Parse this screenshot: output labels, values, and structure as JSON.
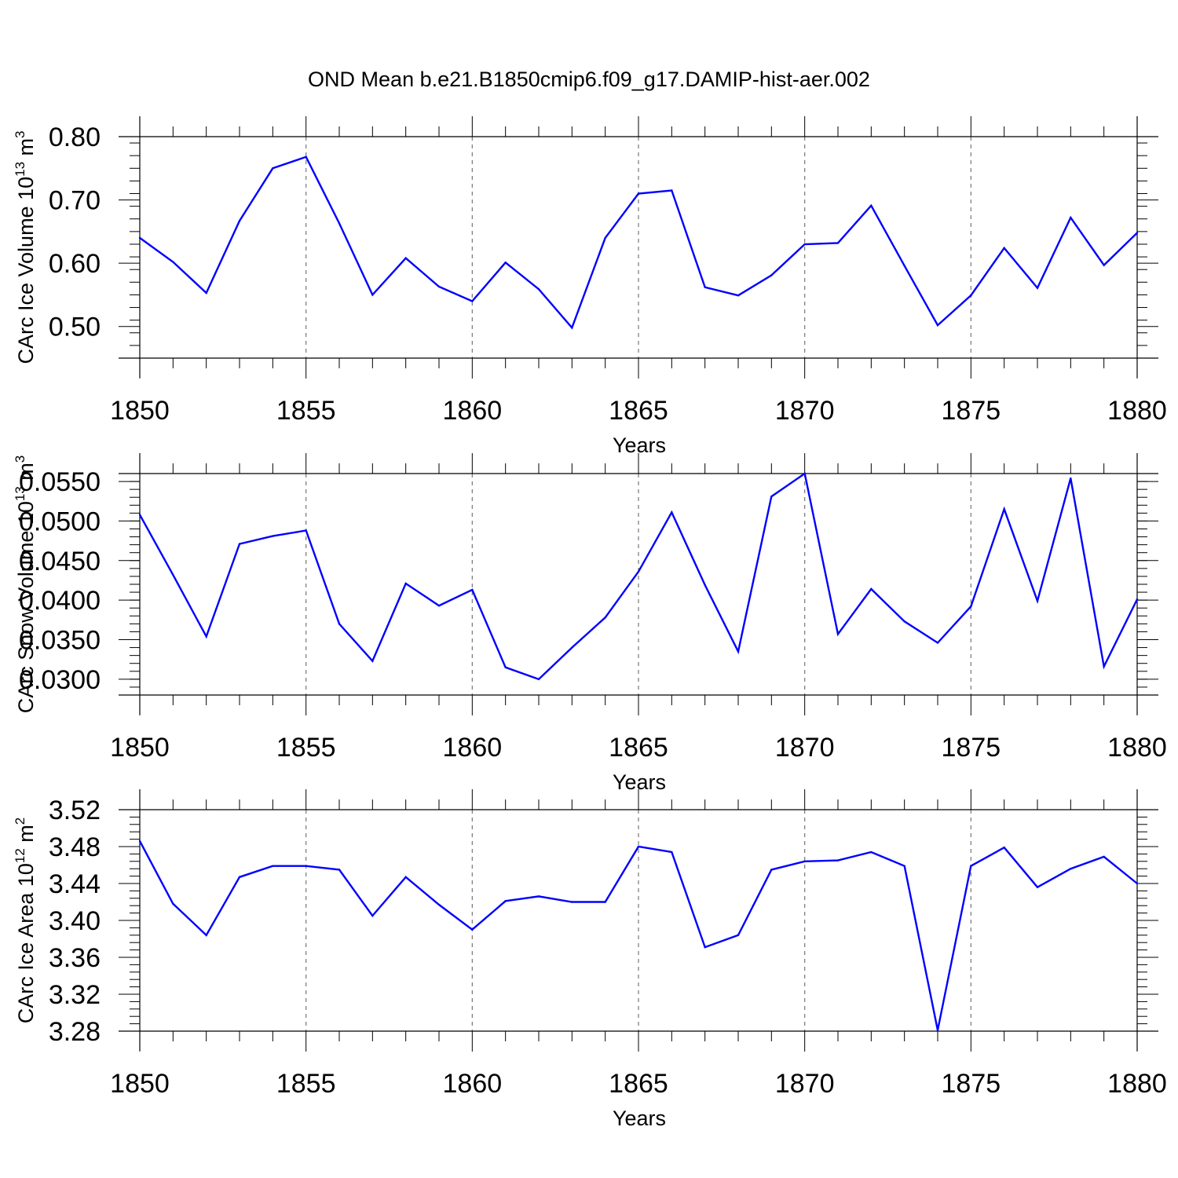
{
  "title": "OND Mean b.e21.B1850cmip6.f09_g17.DAMIP-hist-aer.002",
  "line_color": "#0000ff",
  "chart_data": [
    {
      "type": "line",
      "title": "OND Mean b.e21.B1850cmip6.f09_g17.DAMIP-hist-aer.002",
      "xlabel": "Years",
      "ylabel": "CArc Ice Volume 10",
      "ylabel_exp": "13",
      "ylabel_unit": " m",
      "ylabel_unit_exp": "3",
      "xlim": [
        1850,
        1880
      ],
      "ylim": [
        0.45,
        0.8
      ],
      "yticks": [
        0.5,
        0.6,
        0.7,
        0.8
      ],
      "ytick_labels": [
        "0.50",
        "0.60",
        "0.70",
        "0.80"
      ],
      "xticks": [
        1850,
        1855,
        1860,
        1865,
        1870,
        1875,
        1880
      ],
      "xtick_labels": [
        "1850",
        "1855",
        "1860",
        "1865",
        "1870",
        "1875",
        "1880"
      ],
      "grid": "vertical dashed at major x ticks",
      "x": [
        1850,
        1851,
        1852,
        1853,
        1854,
        1855,
        1856,
        1857,
        1858,
        1859,
        1860,
        1861,
        1862,
        1863,
        1864,
        1865,
        1866,
        1867,
        1868,
        1869,
        1870,
        1871,
        1872,
        1873,
        1874,
        1875,
        1876,
        1877,
        1878,
        1879,
        1880
      ],
      "y": [
        0.64,
        0.602,
        0.553,
        0.667,
        0.75,
        0.768,
        0.663,
        0.55,
        0.608,
        0.563,
        0.54,
        0.601,
        0.559,
        0.498,
        0.64,
        0.71,
        0.715,
        0.562,
        0.549,
        0.581,
        0.63,
        0.632,
        0.691,
        0.596,
        0.502,
        0.549,
        0.624,
        0.561,
        0.672,
        0.597,
        0.648
      ]
    },
    {
      "type": "line",
      "xlabel": "Years",
      "ylabel": "CArc Snow Volume 10",
      "ylabel_exp": "13",
      "ylabel_unit": " m",
      "ylabel_unit_exp": "3",
      "xlim": [
        1850,
        1880
      ],
      "ylim": [
        0.028,
        0.056
      ],
      "yticks": [
        0.03,
        0.035,
        0.04,
        0.045,
        0.05,
        0.055
      ],
      "ytick_labels": [
        "0.0300",
        "0.0350",
        "0.0400",
        "0.0450",
        "0.0500",
        "0.0550"
      ],
      "xticks": [
        1850,
        1855,
        1860,
        1865,
        1870,
        1875,
        1880
      ],
      "xtick_labels": [
        "1850",
        "1855",
        "1860",
        "1865",
        "1870",
        "1875",
        "1880"
      ],
      "grid": "vertical dashed at major x ticks",
      "x": [
        1850,
        1851,
        1852,
        1853,
        1854,
        1855,
        1856,
        1857,
        1858,
        1859,
        1860,
        1861,
        1862,
        1863,
        1864,
        1865,
        1866,
        1867,
        1868,
        1869,
        1870,
        1871,
        1872,
        1873,
        1874,
        1875,
        1876,
        1877,
        1878,
        1879,
        1880
      ],
      "y": [
        0.0508,
        0.0432,
        0.0354,
        0.0471,
        0.0481,
        0.0488,
        0.037,
        0.0323,
        0.0421,
        0.0393,
        0.0413,
        0.0315,
        0.03,
        0.034,
        0.0378,
        0.0436,
        0.0511,
        0.0419,
        0.0335,
        0.0531,
        0.056,
        0.0357,
        0.0414,
        0.0373,
        0.0346,
        0.0392,
        0.0515,
        0.0399,
        0.0554,
        0.0316,
        0.0401
      ]
    },
    {
      "type": "line",
      "xlabel": "Years",
      "ylabel": "CArc Ice Area 10",
      "ylabel_exp": "12",
      "ylabel_unit": " m",
      "ylabel_unit_exp": "2",
      "xlim": [
        1850,
        1880
      ],
      "ylim": [
        3.28,
        3.52
      ],
      "yticks": [
        3.28,
        3.32,
        3.36,
        3.4,
        3.44,
        3.48,
        3.52
      ],
      "ytick_labels": [
        "3.28",
        "3.32",
        "3.36",
        "3.40",
        "3.44",
        "3.48",
        "3.52"
      ],
      "xticks": [
        1850,
        1855,
        1860,
        1865,
        1870,
        1875,
        1880
      ],
      "xtick_labels": [
        "1850",
        "1855",
        "1860",
        "1865",
        "1870",
        "1875",
        "1880"
      ],
      "grid": "vertical dashed at major x ticks",
      "x": [
        1850,
        1851,
        1852,
        1853,
        1854,
        1855,
        1856,
        1857,
        1858,
        1859,
        1860,
        1861,
        1862,
        1863,
        1864,
        1865,
        1866,
        1867,
        1868,
        1869,
        1870,
        1871,
        1872,
        1873,
        1874,
        1875,
        1876,
        1877,
        1878,
        1879,
        1880
      ],
      "y": [
        3.486,
        3.418,
        3.384,
        3.447,
        3.459,
        3.459,
        3.455,
        3.405,
        3.447,
        3.417,
        3.39,
        3.421,
        3.426,
        3.42,
        3.42,
        3.48,
        3.474,
        3.371,
        3.384,
        3.455,
        3.464,
        3.465,
        3.474,
        3.459,
        3.281,
        3.459,
        3.479,
        3.436,
        3.456,
        3.469,
        3.44
      ]
    }
  ]
}
